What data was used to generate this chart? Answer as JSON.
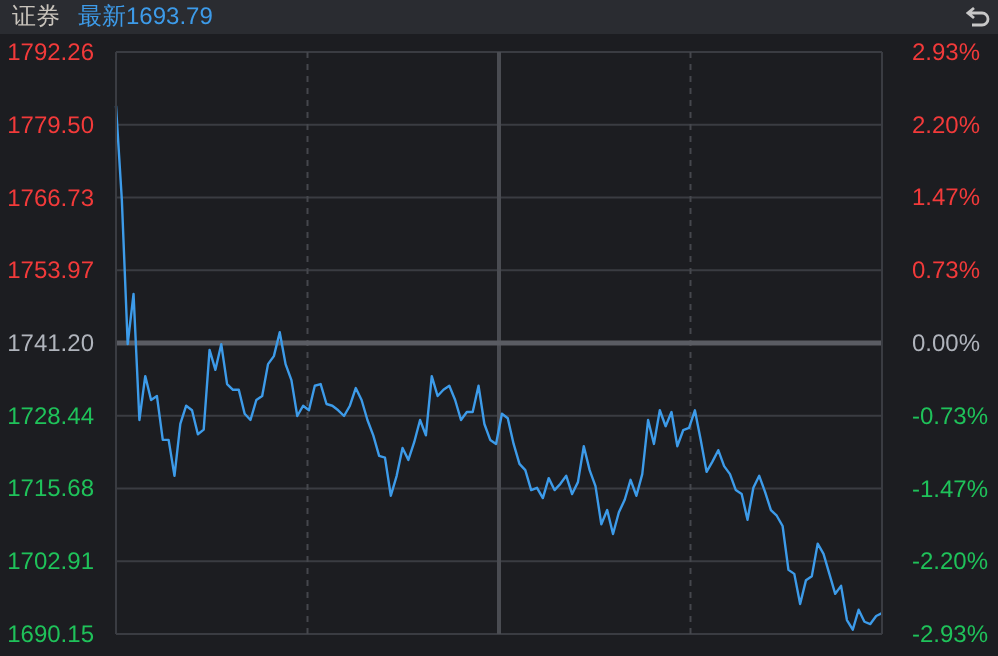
{
  "chart_data": {
    "type": "line",
    "title": "证券",
    "subtitle": "最新1693.79",
    "color": "#3d9be9",
    "categories": [
      null,
      null,
      null,
      null,
      null,
      null,
      null,
      null,
      null,
      null,
      null,
      null,
      null,
      null,
      null,
      null,
      null,
      null,
      null,
      null,
      null,
      null,
      null,
      null,
      null,
      null,
      null,
      null,
      null,
      null,
      null,
      null,
      null,
      null,
      null,
      null,
      null,
      null,
      null,
      null,
      null,
      null,
      null,
      null,
      null,
      null,
      null,
      null,
      null,
      null,
      null,
      null,
      null,
      null,
      null,
      null,
      null,
      null,
      null,
      null,
      null,
      null,
      null,
      null,
      null,
      null,
      null,
      null,
      null,
      null,
      null,
      null,
      null,
      null,
      null,
      null,
      null,
      null,
      null,
      null,
      null,
      null,
      null,
      null,
      null,
      null,
      null,
      null,
      null,
      null,
      null,
      null,
      null,
      null,
      null,
      null,
      null,
      null,
      null,
      null,
      null,
      null,
      null,
      null,
      null,
      null,
      null,
      null,
      null,
      null,
      null,
      null,
      null,
      null,
      null,
      null,
      null,
      null,
      null,
      null,
      null,
      null,
      null,
      null,
      null,
      null,
      null,
      null,
      null,
      null,
      null,
      null
    ],
    "values": [
      1782.8,
      1766.3,
      1741.0,
      1749.8,
      1727.7,
      1735.4,
      1731.2,
      1731.9,
      1724.2,
      1724.2,
      1717.9,
      1727.0,
      1730.2,
      1729.4,
      1725.2,
      1726.0,
      1740.0,
      1736.5,
      1741.0,
      1734.0,
      1733.0,
      1733.0,
      1728.8,
      1727.7,
      1731.2,
      1731.9,
      1737.5,
      1738.9,
      1743.1,
      1737.5,
      1734.7,
      1728.4,
      1730.2,
      1729.4,
      1733.7,
      1734.0,
      1730.5,
      1730.2,
      1729.4,
      1728.4,
      1730.2,
      1733.3,
      1731.2,
      1727.7,
      1725.0,
      1721.4,
      1721.1,
      1714.4,
      1717.9,
      1722.8,
      1720.7,
      1723.8,
      1727.7,
      1725.0,
      1735.4,
      1731.9,
      1733.0,
      1733.7,
      1731.2,
      1727.7,
      1729.1,
      1729.1,
      1733.7,
      1727.0,
      1724.2,
      1723.5,
      1728.8,
      1728.0,
      1723.5,
      1720.0,
      1718.9,
      1715.4,
      1715.8,
      1714.0,
      1717.5,
      1715.4,
      1716.5,
      1717.9,
      1714.7,
      1716.8,
      1723.1,
      1718.9,
      1716.1,
      1709.4,
      1711.9,
      1707.7,
      1711.5,
      1713.7,
      1717.2,
      1714.4,
      1718.2,
      1727.7,
      1723.5,
      1729.4,
      1726.6,
      1729.1,
      1723.1,
      1725.9,
      1726.3,
      1729.4,
      1724.2,
      1718.6,
      1720.4,
      1722.4,
      1719.6,
      1718.2,
      1715.4,
      1714.7,
      1710.2,
      1715.8,
      1717.9,
      1715.1,
      1711.9,
      1710.9,
      1709.1,
      1701.4,
      1700.7,
      1695.4,
      1699.6,
      1700.3,
      1706.0,
      1704.2,
      1700.7,
      1697.2,
      1698.6,
      1692.6,
      1690.9,
      1694.4,
      1692.3,
      1691.9,
      1693.3,
      1693.8
    ],
    "ylim": [
      1690.15,
      1792.26
    ],
    "yticks": [
      1690.15,
      1702.91,
      1715.68,
      1728.44,
      {
        "value": 1741.2,
        "label": "1741.20"
      },
      1753.97,
      1766.73,
      {
        "value": 1779.5,
        "label": "1779.50"
      },
      1792.26
    ],
    "y2lim": [
      -2.93,
      2.93
    ],
    "y2ticks": [
      {
        "value": -2.93,
        "label": "-2.93%"
      },
      {
        "value": -2.2,
        "label": "-2.20%"
      },
      {
        "value": -1.47,
        "label": "-1.47%"
      },
      {
        "value": -0.73,
        "label": "-0.73%"
      },
      {
        "value": 0,
        "label": "0.00%"
      },
      {
        "value": 0.73,
        "label": "0.73%"
      },
      {
        "value": 1.47,
        "label": "1.47%"
      },
      {
        "value": 2.2,
        "label": "2.20%"
      },
      {
        "value": 2.93,
        "label": "2.93%"
      }
    ],
    "grid": true,
    "tick_labels": "y",
    "ref_lines": [
      {
        "axis": "y",
        "value": 1741.2,
        "color": "#5a5c63"
      }
    ]
  }
}
